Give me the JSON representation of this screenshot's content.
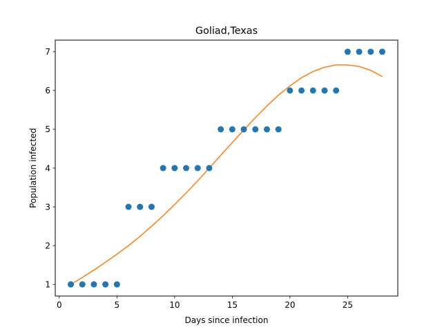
{
  "chart_data": {
    "type": "scatter",
    "title": "Goliad,Texas",
    "xlabel": "Days since infection",
    "ylabel": "Population infected",
    "xlim": [
      -0.35,
      29.35
    ],
    "ylim": [
      0.7,
      7.3
    ],
    "xticks": [
      0,
      5,
      10,
      15,
      20,
      25
    ],
    "yticks": [
      1,
      2,
      3,
      4,
      5,
      6,
      7
    ],
    "grid": false,
    "colors": {
      "points": "#1f77b4",
      "fit": "#ff7f0e"
    },
    "series": [
      {
        "kind": "scatter",
        "x": [
          1,
          2,
          3,
          4,
          5,
          6,
          7,
          8,
          9,
          10,
          11,
          12,
          13,
          14,
          15,
          16,
          17,
          18,
          19,
          20,
          21,
          22,
          23,
          24,
          25,
          26,
          27,
          28
        ],
        "y": [
          1,
          1,
          1,
          1,
          1,
          3,
          3,
          3,
          4,
          4,
          4,
          4,
          4,
          5,
          5,
          5,
          5,
          5,
          5,
          6,
          6,
          6,
          6,
          6,
          7,
          7,
          7,
          7
        ]
      },
      {
        "kind": "line",
        "x": [
          1,
          2,
          3,
          4,
          5,
          6,
          7,
          8,
          9,
          10,
          11,
          12,
          13,
          14,
          15,
          16,
          17,
          18,
          19,
          20,
          21,
          22,
          23,
          24,
          25,
          26,
          27,
          28
        ],
        "y": [
          1.0,
          1.18,
          1.37,
          1.57,
          1.78,
          2.0,
          2.24,
          2.5,
          2.77,
          3.06,
          3.36,
          3.67,
          4.0,
          4.33,
          4.66,
          4.98,
          5.3,
          5.6,
          5.88,
          6.12,
          6.33,
          6.49,
          6.6,
          6.66,
          6.66,
          6.62,
          6.52,
          6.36
        ]
      }
    ]
  }
}
